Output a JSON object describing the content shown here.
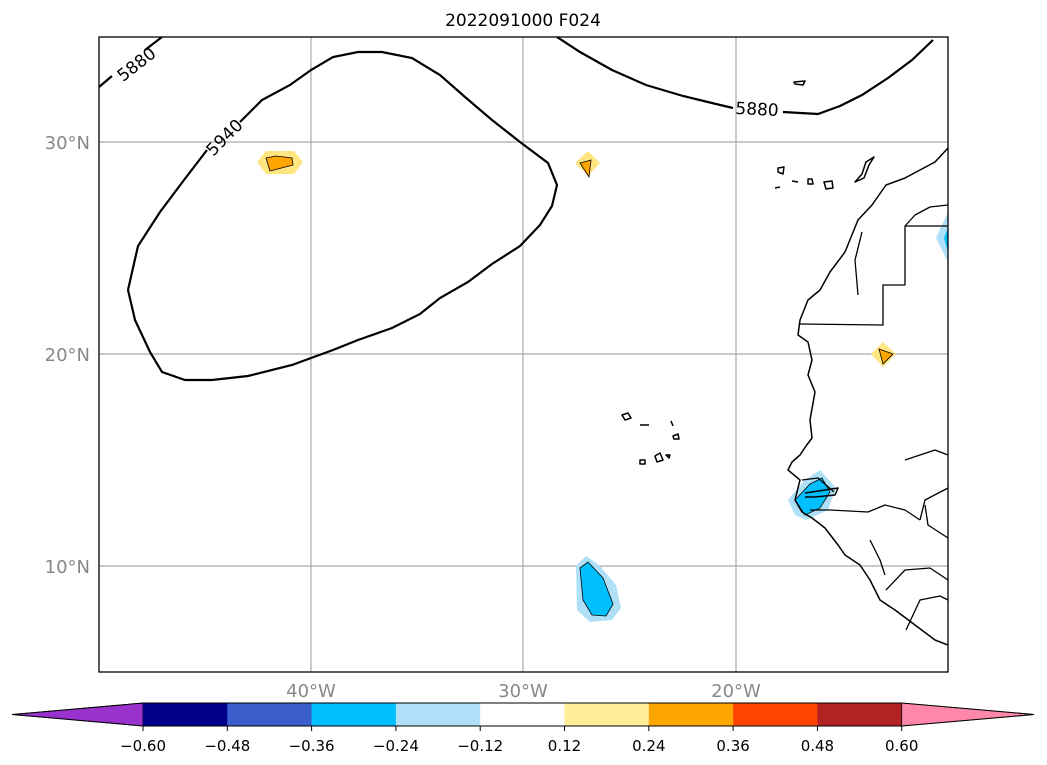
{
  "title": "2022091000 F024",
  "map": {
    "lat_ticks": [
      "30°N",
      "20°N",
      "10°N"
    ],
    "lon_ticks": [
      "40°W",
      "30°W",
      "20°W"
    ],
    "contours": [
      {
        "label": "5880"
      },
      {
        "label": "5940"
      },
      {
        "label": "5880"
      }
    ],
    "anomaly_features": [
      {
        "name": "warm-blob-west",
        "level": 0.36,
        "color_outer": "#ffe680",
        "color_inner": "#ffa500"
      },
      {
        "name": "warm-blob-center",
        "level": 0.24,
        "color_outer": "#ffe680",
        "color_inner": "#ffa500"
      },
      {
        "name": "warm-blob-africa",
        "level": 0.24,
        "color_outer": "#ffe680",
        "color_inner": "#ffa500"
      },
      {
        "name": "cold-blob-south",
        "level": -0.36,
        "color_outer": "#aee0f8",
        "color_inner": "#00bfff"
      },
      {
        "name": "cold-blob-senegal",
        "level": -0.36,
        "color_outer": "#aee0f8",
        "color_inner": "#00bfff"
      },
      {
        "name": "cold-blob-east",
        "level": -0.24,
        "color_outer": "#aee0f8",
        "color_inner": "#00bfff"
      }
    ]
  },
  "colorbar": {
    "extend": "both",
    "colors": [
      "#9932cc",
      "#00008b",
      "#3a5fcd",
      "#00bfff",
      "#aee0f8",
      "#ffffff",
      "#ffee99",
      "#ffa500",
      "#ff4500",
      "#b22222",
      "#ff88aa"
    ],
    "tick_labels": [
      "−0.60",
      "−0.48",
      "−0.36",
      "−0.24",
      "−0.12",
      "0.12",
      "0.24",
      "0.36",
      "0.48",
      "0.60"
    ]
  }
}
